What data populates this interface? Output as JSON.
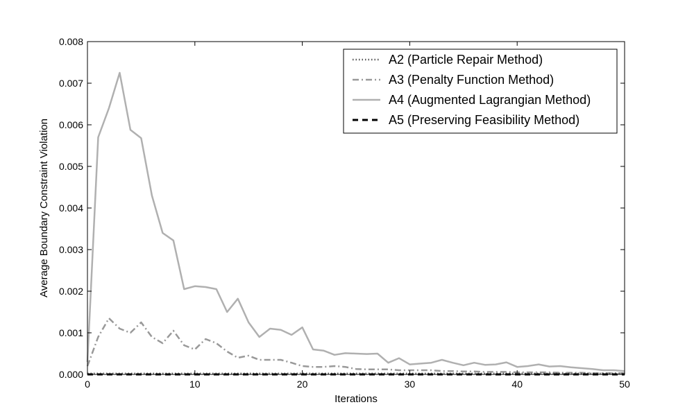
{
  "chart_data": {
    "type": "line",
    "title": "",
    "xlabel": "Iterations",
    "ylabel": "Average Boundary Constraint Violation",
    "xlim": [
      0,
      50
    ],
    "ylim": [
      0,
      0.008
    ],
    "xticks": [
      "0",
      "10",
      "20",
      "30",
      "40",
      "50"
    ],
    "yticks": [
      "0.000",
      "0.001",
      "0.002",
      "0.003",
      "0.004",
      "0.005",
      "0.006",
      "0.007",
      "0.008"
    ],
    "grid": false,
    "legend_position": "top-right",
    "series": [
      {
        "name": "A2 (Particle Repair Method)",
        "style": "dotted",
        "color": "#555555",
        "x": [
          0,
          50
        ],
        "y": [
          2e-05,
          2e-05
        ]
      },
      {
        "name": "A3 (Penalty Function Method)",
        "style": "dashdot",
        "color": "#999999",
        "x": [
          0,
          1,
          2,
          3,
          4,
          5,
          6,
          7,
          8,
          9,
          10,
          11,
          12,
          13,
          14,
          15,
          16,
          17,
          18,
          19,
          20,
          21,
          22,
          23,
          24,
          25,
          26,
          27,
          28,
          29,
          30,
          31,
          32,
          33,
          34,
          35,
          36,
          37,
          38,
          39,
          40,
          41,
          42,
          43,
          44,
          45,
          46,
          47,
          48,
          49,
          50
        ],
        "y": [
          0.0002,
          0.0009,
          0.00135,
          0.0011,
          0.001,
          0.00125,
          0.0009,
          0.00075,
          0.00105,
          0.0007,
          0.0006,
          0.00085,
          0.00075,
          0.00055,
          0.0004,
          0.00045,
          0.00035,
          0.00035,
          0.00035,
          0.00028,
          0.0002,
          0.00018,
          0.00018,
          0.0002,
          0.00018,
          0.00013,
          0.00012,
          0.00012,
          0.00012,
          0.0001,
          0.0001,
          0.0001,
          0.0001,
          8e-05,
          8e-05,
          7e-05,
          7e-05,
          6e-05,
          6e-05,
          6e-05,
          5e-05,
          5e-05,
          5e-05,
          5e-05,
          4e-05,
          4e-05,
          4e-05,
          3e-05,
          3e-05,
          3e-05,
          3e-05
        ]
      },
      {
        "name": "A4 (Augmented Lagrangian Method)",
        "style": "solid",
        "color": "#b0b0b0",
        "x": [
          0,
          1,
          2,
          3,
          4,
          5,
          6,
          7,
          8,
          9,
          10,
          11,
          12,
          13,
          14,
          15,
          16,
          17,
          18,
          19,
          20,
          21,
          22,
          23,
          24,
          25,
          26,
          27,
          28,
          29,
          30,
          31,
          32,
          33,
          34,
          35,
          36,
          37,
          38,
          39,
          40,
          41,
          42,
          43,
          44,
          45,
          46,
          47,
          48,
          49,
          50
        ],
        "y": [
          0.0003,
          0.0057,
          0.0064,
          0.00725,
          0.00588,
          0.00568,
          0.0043,
          0.0034,
          0.00322,
          0.00205,
          0.00212,
          0.0021,
          0.00205,
          0.0015,
          0.00182,
          0.00125,
          0.0009,
          0.0011,
          0.00107,
          0.00095,
          0.00113,
          0.0006,
          0.00057,
          0.00047,
          0.00051,
          0.0005,
          0.00049,
          0.0005,
          0.00028,
          0.00039,
          0.00024,
          0.00026,
          0.00028,
          0.00035,
          0.00028,
          0.00022,
          0.00028,
          0.00023,
          0.00024,
          0.00029,
          0.00018,
          0.0002,
          0.00024,
          0.00019,
          0.0002,
          0.00017,
          0.00015,
          0.00013,
          0.0001,
          0.0001,
          8e-05
        ]
      },
      {
        "name": "A5 (Preserving Feasibility Method)",
        "style": "dashed",
        "color": "#000000",
        "x": [
          0,
          50
        ],
        "y": [
          0.0,
          0.0
        ]
      }
    ]
  }
}
